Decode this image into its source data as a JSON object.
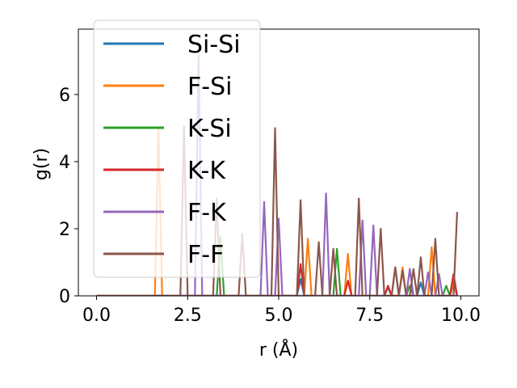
{
  "chart_data": {
    "type": "line",
    "title": "",
    "xlabel": "r (Å)",
    "ylabel": "g(r)",
    "xlim": [
      -0.5,
      10.5
    ],
    "ylim": [
      0,
      7.95
    ],
    "xticks": [
      0.0,
      2.5,
      5.0,
      7.5,
      10.0
    ],
    "xtick_labels": [
      "0.0",
      "2.5",
      "5.0",
      "7.5",
      "10.0"
    ],
    "yticks": [
      0,
      2,
      4,
      6
    ],
    "ytick_labels": [
      "0",
      "2",
      "4",
      "6"
    ],
    "legend_position": "upper-left",
    "grid": false,
    "series": [
      {
        "name": "Si-Si",
        "color": "#1f77b4",
        "peaks": [
          [
            5.6,
            0.5
          ],
          [
            8.0,
            0.25
          ],
          [
            8.9,
            0.4
          ],
          [
            9.8,
            0.35
          ]
        ]
      },
      {
        "name": "F-Si",
        "color": "#ff7f0e",
        "peaks": [
          [
            1.7,
            5.0
          ],
          [
            5.8,
            1.7
          ],
          [
            6.9,
            1.25
          ],
          [
            8.4,
            0.85
          ],
          [
            9.2,
            1.45
          ],
          [
            9.8,
            0.4
          ]
        ]
      },
      {
        "name": "K-Si",
        "color": "#2ca02c",
        "peaks": [
          [
            3.4,
            1.75
          ],
          [
            6.6,
            1.4
          ],
          [
            8.6,
            0.3
          ],
          [
            9.6,
            0.3
          ]
        ]
      },
      {
        "name": "K-K",
        "color": "#d62728",
        "peaks": [
          [
            5.6,
            0.95
          ],
          [
            6.9,
            0.45
          ],
          [
            8.0,
            0.3
          ],
          [
            9.8,
            0.65
          ]
        ]
      },
      {
        "name": "F-K",
        "color": "#9467bd",
        "peaks": [
          [
            2.8,
            7.2
          ],
          [
            4.6,
            2.8
          ],
          [
            5.0,
            2.3
          ],
          [
            6.3,
            3.05
          ],
          [
            7.3,
            2.25
          ],
          [
            7.6,
            2.1
          ],
          [
            8.2,
            0.85
          ],
          [
            8.6,
            0.8
          ],
          [
            9.1,
            0.7
          ],
          [
            9.4,
            0.65
          ]
        ]
      },
      {
        "name": "F-F",
        "color": "#8c564b",
        "peaks": [
          [
            2.4,
            5.05
          ],
          [
            3.3,
            2.9
          ],
          [
            4.0,
            1.85
          ],
          [
            4.9,
            5.0
          ],
          [
            5.6,
            2.85
          ],
          [
            6.1,
            1.6
          ],
          [
            6.5,
            1.4
          ],
          [
            7.2,
            2.9
          ],
          [
            7.8,
            2.0
          ],
          [
            8.2,
            0.85
          ],
          [
            8.4,
            0.75
          ],
          [
            8.7,
            0.8
          ],
          [
            8.9,
            1.15
          ],
          [
            9.3,
            1.7
          ],
          [
            9.9,
            2.5
          ]
        ]
      }
    ]
  }
}
